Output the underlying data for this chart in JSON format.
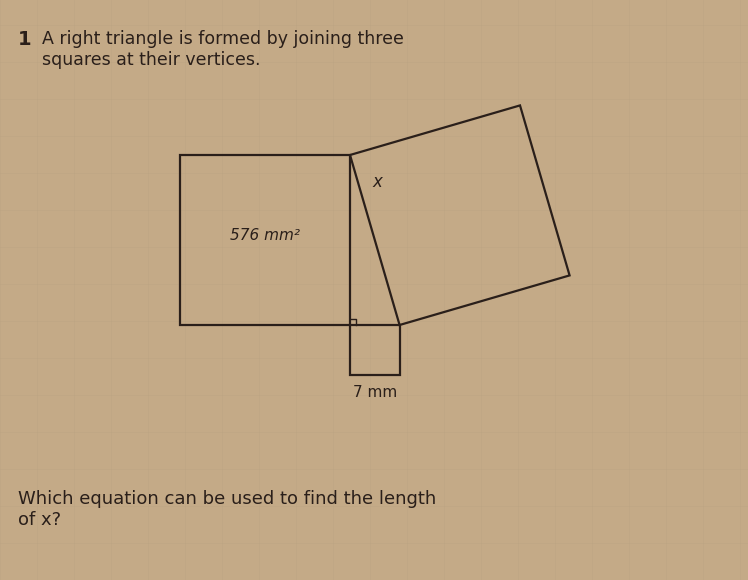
{
  "background_color": "#c4aa87",
  "title_number": "1",
  "title_text": "A right triangle is formed by joining three\nsquares at their vertices.",
  "question_text": "Which equation can be used to find the length\nof x?",
  "left_square_label": "576 mm²",
  "bottom_square_label": "7 mm",
  "hyp_square_label": "x",
  "line_color": "#2a1f1a",
  "line_width": 1.6,
  "text_color": "#2a1f1a",
  "title_fontsize": 12.5,
  "label_fontsize": 11,
  "question_fontsize": 13,
  "number_fontsize": 14,
  "grid_color": "#b8a080",
  "grid_alpha": 0.5
}
